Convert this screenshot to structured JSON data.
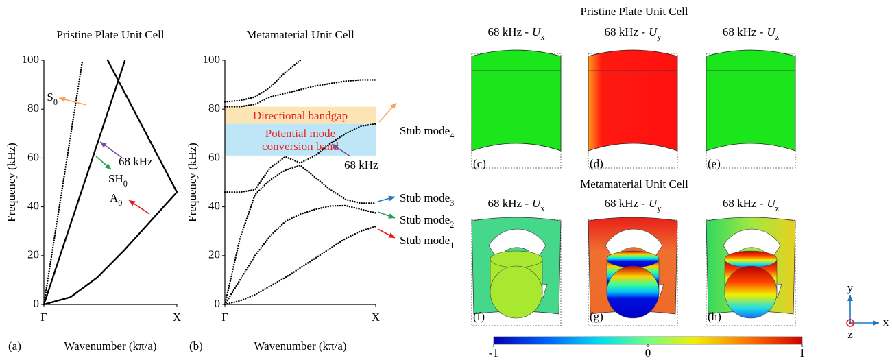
{
  "chart_data": [
    {
      "type": "line",
      "title": "Pristine Plate Unit Cell",
      "x_label": "Wavenumber (kπ/a)",
      "y_label": "Frequency (kHz)",
      "panel_label": "(a)",
      "xlim": [
        0,
        1
      ],
      "ylim": [
        0,
        100
      ],
      "xticks": [
        {
          "value": 0,
          "label": "Γ"
        },
        {
          "value": 1,
          "label": "X"
        }
      ],
      "yticks": [
        0,
        20,
        40,
        60,
        80,
        100
      ],
      "series": [
        {
          "color": "#000000",
          "style": "dotted",
          "x": [
            0,
            0.29
          ],
          "values": [
            0,
            100
          ]
        },
        {
          "color": "#000000",
          "style": "solid",
          "x": [
            0,
            0.61
          ],
          "values": [
            0,
            100
          ]
        },
        {
          "color": "#000000",
          "style": "solid",
          "x": [
            0.48,
            1
          ],
          "values": [
            100,
            46
          ]
        },
        {
          "color": "#000000",
          "style": "solid",
          "x": [
            0,
            0.2,
            0.4,
            0.6,
            0.8,
            1
          ],
          "values": [
            0,
            3,
            11,
            22,
            34,
            46
          ]
        }
      ],
      "annotations": [
        {
          "text": "S",
          "sub": "0",
          "color": "#f4a261"
        },
        {
          "text": "SH",
          "sub": "0",
          "color": "#1fa055"
        },
        {
          "text": "68 kHz",
          "color": "#7b4fa0"
        },
        {
          "text": "A",
          "sub": "0",
          "color": "#e41a1c"
        }
      ]
    },
    {
      "type": "line",
      "title": "Metamaterial Unit Cell",
      "x_label": "Wavenumber (kπ/a)",
      "y_label": "Frequency (kHz)",
      "panel_label": "(b)",
      "xlim": [
        0,
        1
      ],
      "ylim": [
        0,
        100
      ],
      "xticks": [
        {
          "value": 0,
          "label": "Γ"
        },
        {
          "value": 1,
          "label": "X"
        }
      ],
      "yticks": [
        0,
        20,
        40,
        60,
        80,
        100
      ],
      "bands": [
        {
          "text": "Directional bandgap",
          "range": [
            74,
            81
          ],
          "color": "#fde4b4",
          "text_color": "#e8251f"
        },
        {
          "text": "Potential mode conversion band",
          "range": [
            61,
            74
          ],
          "color": "#bfe6f7",
          "text_color": "#e8251f"
        }
      ],
      "series": [
        {
          "color": "#000000",
          "style": "dotted",
          "x": [
            0,
            0.1,
            0.2,
            0.3,
            0.4,
            0.5,
            0.6,
            0.7,
            0.8,
            0.9,
            1
          ],
          "values": [
            0,
            1.5,
            4,
            7.5,
            11,
            15,
            19,
            23,
            27,
            30,
            32
          ]
        },
        {
          "color": "#000000",
          "style": "dotted",
          "x": [
            0,
            0.1,
            0.2,
            0.3,
            0.4,
            0.5,
            0.6,
            0.7,
            0.8,
            0.9,
            1
          ],
          "values": [
            0,
            10,
            20,
            28,
            34,
            37,
            39,
            40.3,
            40.5,
            39,
            37.5
          ]
        },
        {
          "color": "#000000",
          "style": "dotted",
          "x": [
            0,
            0.1,
            0.2,
            0.3,
            0.4,
            0.5,
            0.6,
            0.7,
            0.8,
            0.9,
            1
          ],
          "values": [
            0,
            27,
            45,
            51,
            55,
            57,
            52,
            47,
            43,
            41.5,
            41.5
          ]
        },
        {
          "color": "#000000",
          "style": "dotted",
          "x": [
            0,
            0.1,
            0.2,
            0.3,
            0.4,
            0.5,
            0.6,
            0.7,
            0.8,
            0.9,
            1
          ],
          "values": [
            46,
            46,
            47,
            56,
            60.5,
            58,
            61,
            66,
            70,
            73,
            74
          ]
        },
        {
          "color": "#000000",
          "style": "dotted",
          "x": [
            0,
            0.1,
            0.2,
            0.3,
            0.4,
            0.5,
            0.6,
            0.7,
            0.8,
            0.9,
            1
          ],
          "values": [
            81,
            81,
            82,
            85,
            86.5,
            88,
            89.5,
            90.5,
            91.5,
            92,
            92
          ]
        },
        {
          "color": "#000000",
          "style": "dotted",
          "x": [
            0,
            0.1,
            0.2,
            0.3,
            0.4,
            0.5
          ],
          "values": [
            83,
            83.5,
            85,
            89,
            95,
            100
          ]
        }
      ],
      "annotations": [
        {
          "text": "Stub mode",
          "sub": "4",
          "color": "#f4a261"
        },
        {
          "text": "Stub mode",
          "sub": "3",
          "color": "#1f77c0"
        },
        {
          "text": "Stub mode",
          "sub": "2",
          "color": "#1fa055"
        },
        {
          "text": "Stub mode",
          "sub": "1",
          "color": "#e41a1c"
        },
        {
          "text": "68 kHz",
          "color": "#7b4fa0"
        }
      ]
    }
  ],
  "figure": {
    "rows": [
      {
        "title": "Pristine Plate Unit Cell",
        "panels": [
          {
            "label": "(c)",
            "freq": "68 kHz -",
            "var": "U",
            "sub": "x"
          },
          {
            "label": "(d)",
            "freq": "68 kHz -",
            "var": "U",
            "sub": "y"
          },
          {
            "label": "(e)",
            "freq": "68 kHz -",
            "var": "U",
            "sub": "z"
          }
        ]
      },
      {
        "title": "Metamaterial Unit Cell",
        "panels": [
          {
            "label": "(f)",
            "freq": "68 kHz -",
            "var": "U",
            "sub": "x"
          },
          {
            "label": "(g)",
            "freq": "68 kHz -",
            "var": "U",
            "sub": "y"
          },
          {
            "label": "(h)",
            "freq": "68 kHz -",
            "var": "U",
            "sub": "z"
          }
        ]
      }
    ],
    "colorbar": {
      "range": [
        -1,
        1
      ],
      "ticks": [
        -1,
        0,
        1
      ]
    },
    "axes": [
      "x",
      "y",
      "z"
    ]
  }
}
